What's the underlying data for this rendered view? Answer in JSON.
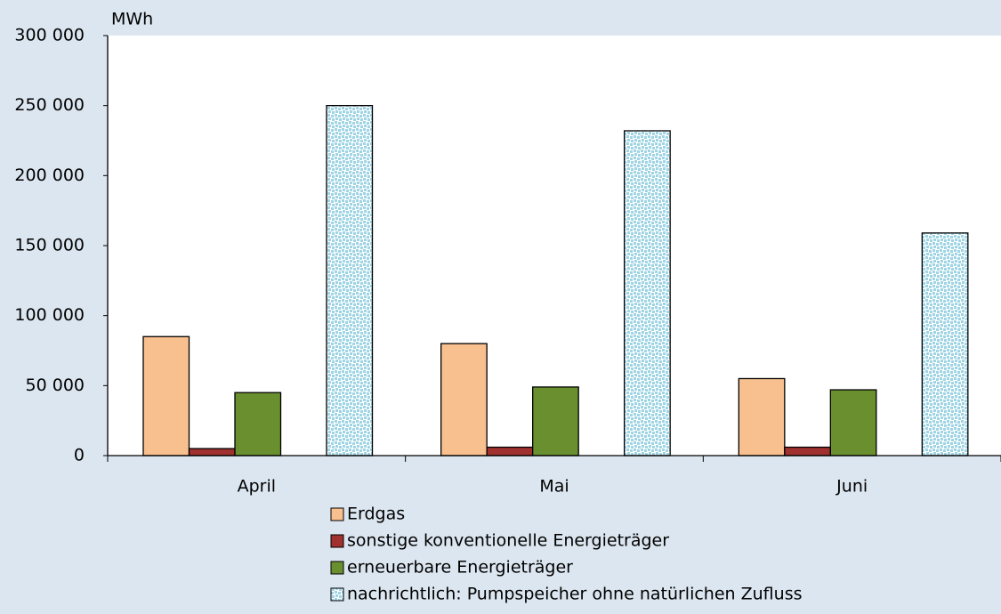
{
  "chart_data": {
    "type": "bar",
    "unit": "MWh",
    "categories": [
      "April",
      "Mai",
      "Juni"
    ],
    "series": [
      {
        "name": "Erdgas",
        "color": "#f9c08f",
        "values": [
          85000,
          80000,
          55000
        ]
      },
      {
        "name": "sonstige konventionelle Energieträger",
        "color": "#a0312e",
        "values": [
          5000,
          6000,
          6000
        ]
      },
      {
        "name": "erneuerbare Energieträger",
        "color": "#6a8f2f",
        "values": [
          45000,
          49000,
          47000
        ]
      },
      {
        "name": "nachrichtlich: Pumpspeicher ohne natürlichen Zufluss",
        "color": "#9ed4e4",
        "pattern": "dots",
        "values": [
          250000,
          232000,
          159000
        ]
      }
    ],
    "ylim": [
      0,
      300000
    ],
    "yticks": [
      0,
      {
        "value": 50000,
        "label": "50 000"
      },
      {
        "value": 100000,
        "label": "100 000"
      },
      {
        "value": 150000,
        "label": "150 000"
      },
      {
        "value": 200000,
        "label": "200 000"
      },
      {
        "value": 250000,
        "label": "250 000"
      },
      {
        "value": 300000,
        "label": "300 000"
      }
    ]
  }
}
